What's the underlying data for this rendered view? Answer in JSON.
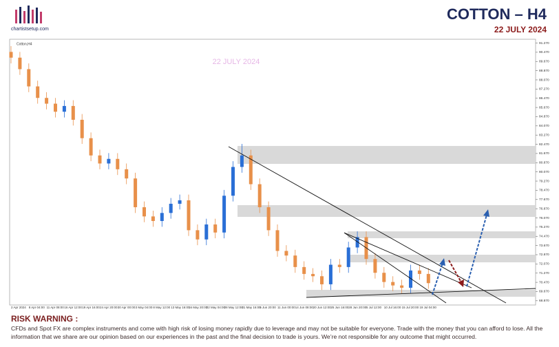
{
  "header": {
    "source": "chartistsetup.com",
    "title": "COTTON  –  H4",
    "date": "22 JULY 2024"
  },
  "chart_data": {
    "type": "candlestick",
    "symbol": "Cotton,H4",
    "watermark": "22 JULY 2024",
    "up_color": "#2a6fd6",
    "down_color": "#e8904a",
    "categories": [
      "2 Apr 2024",
      "8 Apr 04:00",
      "11 Apr 08:00",
      "16 Apr 12:00",
      "19 Apr 16:00",
      "24 Apr 20:00",
      "30 Apr 00:00",
      "3 May 04:00",
      "8 May 12:00",
      "13 May 16:00",
      "16 May 20:00",
      "22 May 04:00",
      "28 May 12:00",
      "31 May 16:00",
      "5 Jun 20:00",
      "11 Jun 00:00",
      "14 Jun 08:00",
      "20 Jun 12:00",
      "25 Jun 16:00",
      "28 Jun 20:00",
      "5 Jul 12:00",
      "10 Jul 16:00",
      "15 Jul 20:00",
      "19 Jul 04:00"
    ],
    "open": [
      90.5,
      90.0,
      89.0,
      87.5,
      86.5,
      86.0,
      85.3,
      85.8,
      84.6,
      83.0,
      81.5,
      80.8,
      81.2,
      80.3,
      79.5,
      77.0,
      76.2,
      75.8,
      76.5,
      77.3,
      77.6,
      75.0,
      74.2,
      75.5,
      74.8,
      78.0,
      80.5,
      81.5,
      79.0,
      77.0,
      75.0,
      73.2,
      72.8,
      71.8,
      71.2,
      71.0,
      70.3,
      72.0,
      71.8,
      73.5,
      74.4,
      72.5,
      71.3,
      70.5,
      70.2,
      70.0,
      71.5,
      71.2
    ],
    "high": [
      91.0,
      90.5,
      89.5,
      88.0,
      87.0,
      86.5,
      86.3,
      86.3,
      85.1,
      83.5,
      82.0,
      81.7,
      81.7,
      80.8,
      80.0,
      77.5,
      76.7,
      77.0,
      77.8,
      78.1,
      78.1,
      75.5,
      76.0,
      76.0,
      78.5,
      81.0,
      82.5,
      82.0,
      79.5,
      77.5,
      75.5,
      73.7,
      73.3,
      72.3,
      71.7,
      71.5,
      72.5,
      72.5,
      74.0,
      74.9,
      74.9,
      73.0,
      71.8,
      71.0,
      70.7,
      72.0,
      72.0,
      71.7
    ],
    "low": [
      89.5,
      88.5,
      87.0,
      86.0,
      85.5,
      84.8,
      84.8,
      84.1,
      82.5,
      81.0,
      80.3,
      80.3,
      79.8,
      79.0,
      76.5,
      75.7,
      75.3,
      75.3,
      76.0,
      76.8,
      74.5,
      73.7,
      73.7,
      74.3,
      74.3,
      77.5,
      80.0,
      78.5,
      76.5,
      74.5,
      72.7,
      72.3,
      71.3,
      70.7,
      70.5,
      69.8,
      69.8,
      71.3,
      71.3,
      73.0,
      72.0,
      70.8,
      70.0,
      69.7,
      69.5,
      69.5,
      70.7,
      69.9
    ],
    "close": [
      90.0,
      89.0,
      87.5,
      86.5,
      86.0,
      85.3,
      85.8,
      84.6,
      83.0,
      81.5,
      80.8,
      81.2,
      80.3,
      79.5,
      77.0,
      76.2,
      75.8,
      76.5,
      77.3,
      77.6,
      75.0,
      74.2,
      75.5,
      74.8,
      78.0,
      80.5,
      81.5,
      79.0,
      77.0,
      75.0,
      73.2,
      72.8,
      71.8,
      71.2,
      71.0,
      70.3,
      72.0,
      71.8,
      73.5,
      74.4,
      72.5,
      71.3,
      70.5,
      70.2,
      70.0,
      71.5,
      71.2,
      70.4
    ],
    "ylim": [
      68.5,
      91.6
    ],
    "yticks": [
      {
        "value": 91.27,
        "label": "91.270"
      },
      {
        "value": 90.47,
        "label": "90.470"
      },
      {
        "value": 89.67,
        "label": "89.670"
      },
      {
        "value": 88.87,
        "label": "88.870"
      },
      {
        "value": 88.07,
        "label": "88.070"
      },
      {
        "value": 87.27,
        "label": "87.270"
      },
      {
        "value": 86.47,
        "label": "86.470"
      },
      {
        "value": 85.67,
        "label": "85.670"
      },
      {
        "value": 84.87,
        "label": "84.870"
      },
      {
        "value": 84.07,
        "label": "84.070"
      },
      {
        "value": 83.27,
        "label": "83.270"
      },
      {
        "value": 82.47,
        "label": "82.470"
      },
      {
        "value": 81.67,
        "label": "81.670"
      },
      {
        "value": 80.87,
        "label": "80.870"
      },
      {
        "value": 80.07,
        "label": "80.070"
      },
      {
        "value": 79.27,
        "label": "79.270"
      },
      {
        "value": 78.47,
        "label": "78.470"
      },
      {
        "value": 77.67,
        "label": "77.670"
      },
      {
        "value": 76.87,
        "label": "76.870"
      },
      {
        "value": 76.07,
        "label": "76.070"
      },
      {
        "value": 75.27,
        "label": "75.270"
      },
      {
        "value": 74.47,
        "label": "74.470"
      },
      {
        "value": 73.67,
        "label": "73.670"
      },
      {
        "value": 72.87,
        "label": "72.870"
      },
      {
        "value": 72.07,
        "label": "72.070"
      },
      {
        "value": 71.27,
        "label": "71.270"
      },
      {
        "value": 70.47,
        "label": "70.470"
      },
      {
        "value": 69.67,
        "label": "69.670"
      },
      {
        "value": 68.87,
        "label": "68.870"
      }
    ]
  },
  "risk_warning": {
    "title": "RISK WARNING :",
    "text": "CFDs and Spot FX are complex instruments and come with high risk of losing money rapidly due to leverage and may not be suitable for everyone. Trade with the  money that you can afford to  lose. All the information that we  share are our opinion based on our experiences in the past and the final decision to trade is yours. We’re not responsible for any outcome  that might occurred."
  }
}
